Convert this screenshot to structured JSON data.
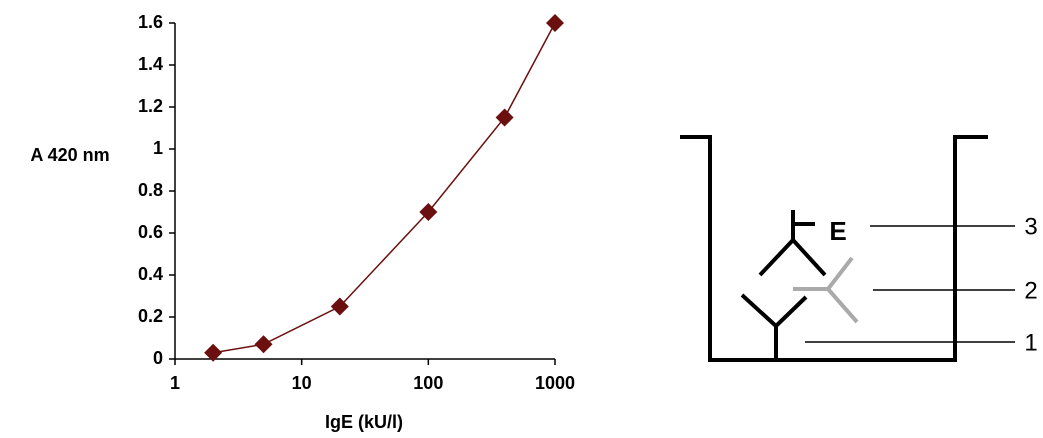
{
  "chart_data": {
    "type": "line",
    "x_label": "IgE (kU/l)",
    "y_label": "A 420 nm",
    "x": [
      2,
      5,
      20,
      100,
      400,
      1000
    ],
    "values": [
      0.03,
      0.07,
      0.25,
      0.7,
      1.15,
      1.6
    ],
    "color": "#6b0f0f",
    "xscale": "log",
    "xlim": [
      1,
      1000
    ],
    "xticks": [
      1,
      10,
      100,
      1000
    ],
    "ylim": [
      0,
      1.6
    ],
    "yticks": [
      0,
      0.2,
      0.4,
      0.6,
      0.8,
      1,
      1.2,
      1.4,
      1.6
    ]
  },
  "diagram": {
    "enzyme": "E",
    "labels": [
      "3",
      "2",
      "1"
    ]
  }
}
